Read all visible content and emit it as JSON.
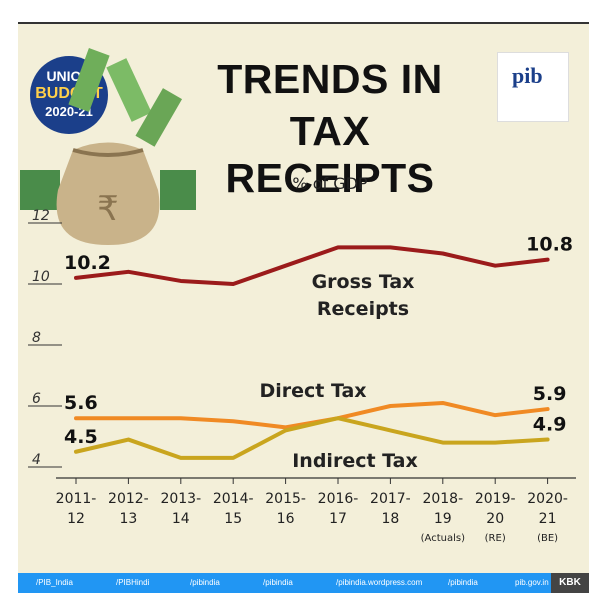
{
  "badge": {
    "line1": "UNION",
    "line2": "BUDGET",
    "line3": "2020-21"
  },
  "logo_text": "pib",
  "footer": {
    "items": [
      "/PIB_India",
      "/PIBHindi",
      "/pibindia",
      "/pibindia",
      "/pibindia.wordpress.com",
      "/pibindia",
      "pib.gov.in"
    ],
    "tag": "KBK"
  },
  "colors": {
    "gross": "#9b1b1b",
    "direct": "#f08a24",
    "indirect": "#c9a51e",
    "footer": "#2196f3"
  },
  "chart_data": {
    "type": "line",
    "title_line1": "TRENDS IN",
    "title_line2": "TAX RECEIPTS",
    "subtitle": "% of GDP",
    "categories": [
      "2011-12",
      "2012-13",
      "2013-14",
      "2014-15",
      "2015-16",
      "2016-17",
      "2017-18",
      "2018-19",
      "2019-20",
      "2020-21"
    ],
    "category_lines": [
      [
        "2011-",
        "12"
      ],
      [
        "2012-",
        "13"
      ],
      [
        "2013-",
        "14"
      ],
      [
        "2014-",
        "15"
      ],
      [
        "2015-",
        "16"
      ],
      [
        "2016-",
        "17"
      ],
      [
        "2017-",
        "18"
      ],
      [
        "2018-",
        "19",
        "(Actuals)"
      ],
      [
        "2019-",
        "20",
        "(RE)"
      ],
      [
        "2020-",
        "21",
        "(BE)"
      ]
    ],
    "ylim": [
      4,
      12
    ],
    "yticks": [
      "4",
      "6",
      "8",
      "10",
      "12"
    ],
    "series": [
      {
        "name": "Gross Tax Receipts",
        "name_lines": [
          "Gross Tax",
          "Receipts"
        ],
        "values": [
          10.2,
          10.4,
          10.1,
          10.0,
          10.6,
          11.2,
          11.2,
          11.0,
          10.6,
          10.8
        ],
        "first_label": "10.2",
        "last_label": "10.8"
      },
      {
        "name": "Direct Tax",
        "name_lines": [
          "Direct Tax"
        ],
        "values": [
          5.6,
          5.6,
          5.6,
          5.5,
          5.3,
          5.6,
          6.0,
          6.1,
          5.7,
          5.9
        ],
        "first_label": "5.6",
        "last_label": "5.9"
      },
      {
        "name": "Indirect Tax",
        "name_lines": [
          "Indirect Tax"
        ],
        "values": [
          4.5,
          4.9,
          4.3,
          4.3,
          5.2,
          5.6,
          5.2,
          4.8,
          4.8,
          4.9
        ],
        "first_label": "4.5",
        "last_label": "4.9"
      }
    ]
  }
}
